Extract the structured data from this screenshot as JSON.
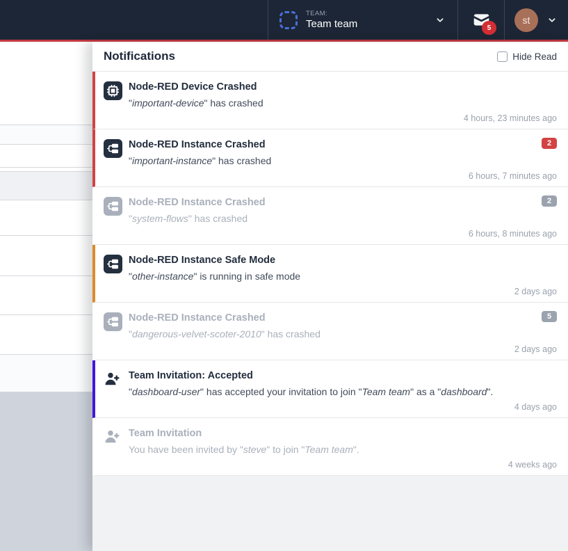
{
  "navbar": {
    "team_label": "TEAM:",
    "team_name": "Team team",
    "mail_badge": "5",
    "avatar_initials": "st"
  },
  "panel": {
    "title": "Notifications",
    "hide_read_label": "Hide Read",
    "notifications": [
      {
        "icon": "chip",
        "read": false,
        "accent": "#d24343",
        "title": "Node-RED Device Crashed",
        "body": [
          {
            "t": "\"",
            "i": false
          },
          {
            "t": "important-device",
            "i": true
          },
          {
            "t": "\" has crashed",
            "i": false
          }
        ],
        "badge": null,
        "timestamp": "4 hours, 23 minutes ago"
      },
      {
        "icon": "instance",
        "read": false,
        "accent": "#d24343",
        "title": "Node-RED Instance Crashed",
        "body": [
          {
            "t": "\"",
            "i": false
          },
          {
            "t": "important-instance",
            "i": true
          },
          {
            "t": "\" has crashed",
            "i": false
          }
        ],
        "badge": {
          "text": "2",
          "color": "red"
        },
        "timestamp": "6 hours, 7 minutes ago"
      },
      {
        "icon": "instance",
        "read": true,
        "accent": null,
        "title": "Node-RED Instance Crashed",
        "body": [
          {
            "t": "\"",
            "i": false
          },
          {
            "t": "system-flows",
            "i": true
          },
          {
            "t": "\" has crashed",
            "i": false
          }
        ],
        "badge": {
          "text": "2",
          "color": "gray"
        },
        "timestamp": "6 hours, 8 minutes ago"
      },
      {
        "icon": "instance",
        "read": false,
        "accent": "#dd8b2d",
        "title": "Node-RED Instance Safe Mode",
        "body": [
          {
            "t": "\"",
            "i": false
          },
          {
            "t": "other-instance",
            "i": true
          },
          {
            "t": "\" is running in safe mode",
            "i": false
          }
        ],
        "badge": null,
        "timestamp": "2 days ago"
      },
      {
        "icon": "instance",
        "read": true,
        "accent": null,
        "title": "Node-RED Instance Crashed",
        "body": [
          {
            "t": "\"",
            "i": false
          },
          {
            "t": "dangerous-velvet-scoter-2010",
            "i": true
          },
          {
            "t": "\" has crashed",
            "i": false
          }
        ],
        "badge": {
          "text": "5",
          "color": "gray"
        },
        "timestamp": "2 days ago"
      },
      {
        "icon": "user-add",
        "read": false,
        "accent": "#3f16e0",
        "title": "Team Invitation: Accepted",
        "body": [
          {
            "t": "\"",
            "i": false
          },
          {
            "t": "dashboard-user",
            "i": true
          },
          {
            "t": "\" has accepted your invitation to join \"",
            "i": false
          },
          {
            "t": "Team team",
            "i": true
          },
          {
            "t": "\" as a \"",
            "i": false
          },
          {
            "t": "dashboard",
            "i": true
          },
          {
            "t": "\".",
            "i": false
          }
        ],
        "badge": null,
        "timestamp": "4 days ago"
      },
      {
        "icon": "user-add",
        "read": true,
        "accent": null,
        "title": "Team Invitation",
        "body": [
          {
            "t": "You have been invited by \"",
            "i": false
          },
          {
            "t": "steve",
            "i": true
          },
          {
            "t": "\" to join \"",
            "i": false
          },
          {
            "t": "Team team",
            "i": true
          },
          {
            "t": "\".",
            "i": false
          }
        ],
        "badge": null,
        "timestamp": "4 weeks ago"
      }
    ]
  },
  "colors": {
    "navbar_bg": "#1d2636",
    "top_line_red": "#c43a40",
    "accent_red": "#d24343",
    "accent_orange": "#dd8b2d",
    "accent_blue": "#3f16e0",
    "badge_red": "#d24343",
    "badge_gray": "#9ba3ae",
    "mail_badge_red": "#d22f35",
    "avatar_brown": "#a87058"
  }
}
